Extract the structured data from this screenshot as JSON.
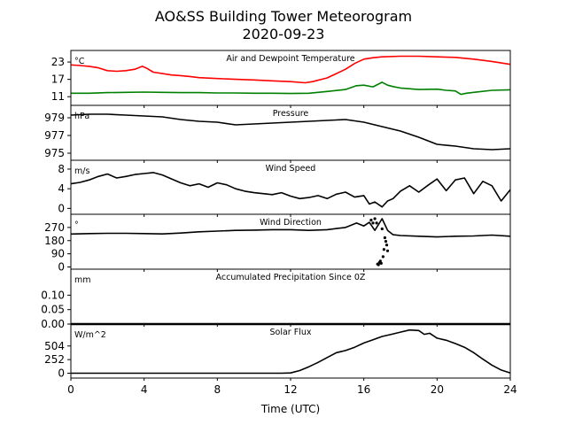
{
  "chart_data": {
    "type": "line",
    "title": "AO&SS Building Tower Meteorogram",
    "subtitle": "2020-09-23",
    "xlabel": "Time (UTC)",
    "xlim": [
      0,
      24
    ],
    "xticks": [
      "0",
      "4",
      "8",
      "12",
      "16",
      "20",
      "24"
    ],
    "grid": false,
    "panels": [
      {
        "title": "Air and Dewpoint Temperature",
        "unit": "°C",
        "ylim": [
          8,
          27
        ],
        "yticks": [
          "11",
          "17",
          "23"
        ],
        "series": [
          {
            "color": "#ff0000",
            "x": [
              0,
              0.5,
              1,
              1.5,
              2,
              2.5,
              3,
              3.5,
              3.9,
              4.1,
              4.5,
              5,
              5.5,
              6,
              6.5,
              7,
              8,
              9,
              10,
              11,
              12,
              12.8,
              13.2,
              14,
              14.5,
              15,
              15.5,
              16,
              16.5,
              17,
              18,
              19,
              20,
              21,
              22,
              23,
              24
            ],
            "y": [
              22.0,
              21.8,
              21.5,
              21.0,
              20.0,
              19.8,
              20.0,
              20.5,
              21.5,
              21.0,
              19.5,
              19.0,
              18.5,
              18.3,
              18.0,
              17.6,
              17.3,
              17.0,
              16.8,
              16.5,
              16.2,
              15.8,
              16.2,
              17.5,
              19.0,
              20.5,
              22.5,
              24.0,
              24.5,
              24.8,
              25.0,
              25.0,
              24.8,
              24.6,
              24.0,
              23.2,
              22.2
            ]
          },
          {
            "color": "#008000",
            "x": [
              0,
              1,
              2,
              3,
              4,
              5,
              6,
              7,
              8,
              9,
              10,
              11,
              12,
              13,
              14,
              15,
              15.6,
              16,
              16.5,
              17,
              17.3,
              17.6,
              18,
              19,
              20,
              20.5,
              21,
              21.3,
              21.6,
              22,
              23,
              24
            ],
            "y": [
              12.2,
              12.2,
              12.4,
              12.5,
              12.6,
              12.5,
              12.4,
              12.4,
              12.3,
              12.3,
              12.2,
              12.2,
              12.1,
              12.2,
              12.8,
              13.5,
              14.8,
              15.0,
              14.4,
              16.0,
              15.0,
              14.5,
              14.0,
              13.5,
              13.6,
              13.2,
              13.0,
              11.8,
              12.2,
              12.5,
              13.2,
              13.4
            ]
          }
        ]
      },
      {
        "title": "Pressure",
        "unit": "hPa",
        "ylim": [
          974.2,
          980.4
        ],
        "yticks": [
          "975",
          "977",
          "979"
        ],
        "series": [
          {
            "color": "#000000",
            "x": [
              0,
              1,
              2,
              3,
              4,
              5,
              6,
              7,
              8,
              9,
              10,
              11,
              12,
              13,
              14,
              15,
              16,
              17,
              18,
              19,
              20,
              21,
              22,
              23,
              24
            ],
            "y": [
              979.3,
              979.4,
              979.4,
              979.3,
              979.2,
              979.1,
              978.8,
              978.6,
              978.5,
              978.2,
              978.3,
              978.4,
              978.5,
              978.6,
              978.7,
              978.8,
              978.5,
              978.0,
              977.5,
              976.8,
              976.0,
              975.8,
              975.5,
              975.4,
              975.5
            ]
          }
        ]
      },
      {
        "title": "Wind Speed",
        "unit": "m/s",
        "ylim": [
          -1.2,
          9.8
        ],
        "yticks": [
          "0",
          "4",
          "8"
        ],
        "series": [
          {
            "color": "#000000",
            "x": [
              0,
              0.5,
              1,
              1.5,
              2,
              2.5,
              3,
              3.5,
              4,
              4.5,
              5,
              5.5,
              6,
              6.5,
              7,
              7.5,
              8,
              8.5,
              9,
              9.5,
              10,
              10.5,
              11,
              11.5,
              12,
              12.5,
              13,
              13.5,
              14,
              14.5,
              15,
              15.5,
              16,
              16.3,
              16.6,
              17,
              17.3,
              17.6,
              18,
              18.5,
              19,
              19.5,
              20,
              20.5,
              21,
              21.5,
              22,
              22.5,
              23,
              23.5,
              24
            ],
            "y": [
              5.0,
              5.3,
              5.8,
              6.5,
              7.0,
              6.2,
              6.5,
              6.9,
              7.1,
              7.3,
              6.8,
              6.0,
              5.2,
              4.6,
              5.0,
              4.3,
              5.2,
              4.8,
              4.0,
              3.5,
              3.2,
              3.0,
              2.8,
              3.2,
              2.5,
              2.0,
              2.2,
              2.6,
              2.0,
              2.9,
              3.3,
              2.3,
              2.6,
              0.9,
              1.3,
              0.3,
              1.5,
              2.0,
              3.5,
              4.6,
              3.3,
              4.7,
              6.0,
              3.6,
              5.8,
              6.2,
              3.0,
              5.5,
              4.6,
              1.5,
              3.8
            ]
          }
        ]
      },
      {
        "title": "Wind Direction",
        "unit": "°",
        "ylim": [
          -15,
          360
        ],
        "yticks": [
          "0",
          "90",
          "180",
          "270"
        ],
        "series": [
          {
            "color": "#000000",
            "x": [
              0,
              1,
              2,
              3,
              4,
              5,
              6,
              7,
              8,
              9,
              10,
              11,
              12,
              13,
              14,
              15,
              15.6,
              16,
              16.3,
              16.6,
              17,
              17.3,
              17.6,
              18,
              19,
              20,
              21,
              22,
              23,
              24
            ],
            "y": [
              225,
              228,
              230,
              230,
              228,
              226,
              232,
              240,
              245,
              250,
              252,
              255,
              255,
              250,
              255,
              270,
              300,
              280,
              305,
              250,
              330,
              250,
              220,
              215,
              210,
              205,
              210,
              212,
              218,
              210
            ]
          }
        ]
      },
      {
        "title": "Accumulated Precipitation Since 0Z",
        "unit": "mm",
        "ylim": [
          0,
          0.19
        ],
        "yticks": [
          "0.00",
          "0.05",
          "0.10"
        ],
        "series": [
          {
            "color": "#000000",
            "x": [
              0,
              24
            ],
            "y": [
              0,
              0
            ]
          }
        ]
      },
      {
        "title": "Solar Flux",
        "unit": "W/m^2",
        "ylim": [
          -90,
          910
        ],
        "yticks": [
          "0",
          "252",
          "504"
        ],
        "series": [
          {
            "color": "#000000",
            "x": [
              0,
              2,
              4,
              6,
              8,
              10,
              11.5,
              12,
              12.5,
              13,
              13.5,
              14,
              14.5,
              15,
              15.5,
              16,
              16.5,
              17,
              17.5,
              18,
              18.5,
              19,
              19.3,
              19.6,
              20,
              20.5,
              21,
              21.5,
              22,
              22.5,
              23,
              23.5,
              24
            ],
            "y": [
              0,
              0,
              0,
              0,
              0,
              0,
              0,
              5,
              50,
              120,
              200,
              290,
              380,
              420,
              480,
              560,
              620,
              680,
              720,
              760,
              800,
              790,
              720,
              740,
              650,
              610,
              550,
              480,
              380,
              260,
              150,
              60,
              5
            ]
          }
        ]
      }
    ],
    "scatter_overlay": {
      "panel": 3,
      "color": "#000000",
      "points": [
        [
          16.6,
          330
        ],
        [
          16.7,
          300
        ],
        [
          16.75,
          20
        ],
        [
          16.8,
          15
        ],
        [
          16.85,
          30
        ],
        [
          16.9,
          40
        ],
        [
          16.95,
          25
        ],
        [
          17.05,
          70
        ],
        [
          17.1,
          120
        ],
        [
          17.15,
          200
        ],
        [
          17.2,
          175
        ],
        [
          17.25,
          150
        ],
        [
          17.3,
          110
        ],
        [
          17.0,
          260
        ],
        [
          16.4,
          320
        ],
        [
          16.5,
          300
        ]
      ]
    }
  }
}
